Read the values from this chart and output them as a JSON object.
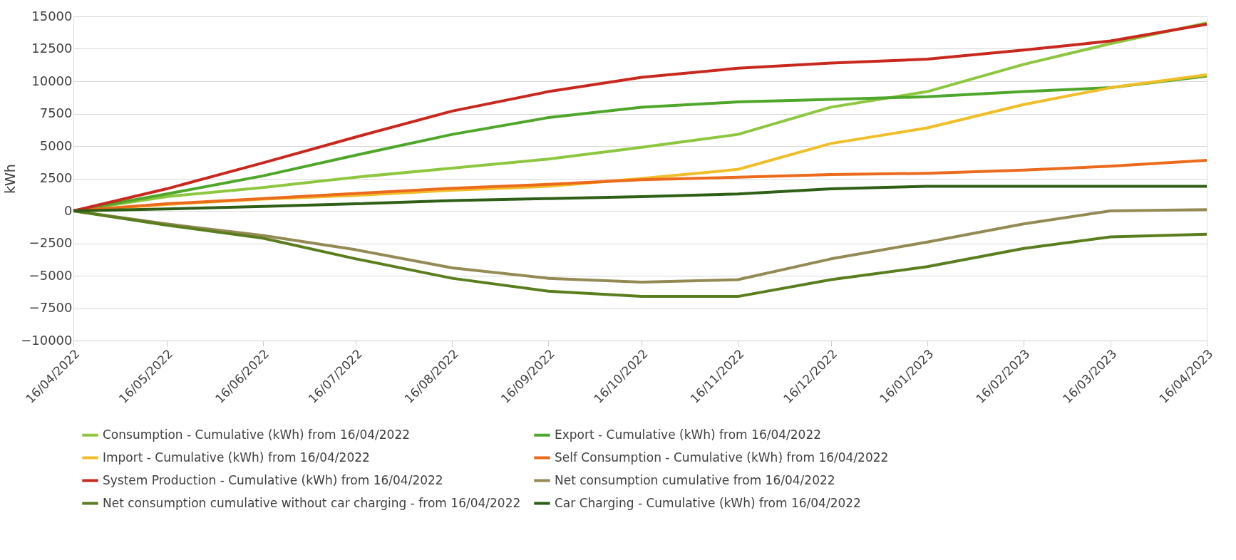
{
  "chart_data": {
    "type": "line",
    "ylabel": "kWh",
    "x": [
      "2022-04-16",
      "2022-05-16",
      "2022-06-16",
      "2022-07-16",
      "2022-08-16",
      "2022-09-16",
      "2022-10-16",
      "2022-11-16",
      "2022-12-16",
      "2023-01-16",
      "2023-02-16",
      "2023-03-16",
      "2023-04-16"
    ],
    "series": [
      {
        "name": "Consumption - Cumulative (kWh) from 16/04/2022",
        "color": "#8dc63f",
        "values": [
          0,
          1100,
          1800,
          2600,
          3300,
          4000,
          4900,
          5900,
          8000,
          9200,
          11300,
          12900,
          14500
        ]
      },
      {
        "name": "Export - Cumulative (kWh) from 16/04/2022",
        "color": "#4ea72a",
        "values": [
          0,
          1300,
          2700,
          4300,
          5900,
          7200,
          8000,
          8400,
          8600,
          8800,
          9200,
          9500,
          10400
        ]
      },
      {
        "name": "Import - Cumulative (kWh) from 16/04/2022",
        "color": "#f0be28",
        "values": [
          0,
          500,
          900,
          1200,
          1600,
          1900,
          2500,
          3200,
          5200,
          6400,
          8200,
          9500,
          10500
        ]
      },
      {
        "name": "Self Consumption - Cumulative (kWh) from 16/04/2022",
        "color": "#ec6a1c",
        "values": [
          0,
          550,
          950,
          1350,
          1750,
          2050,
          2400,
          2600,
          2800,
          2900,
          3150,
          3450,
          3900
        ]
      },
      {
        "name": "System Production - Cumulative (kWh) from 16/04/2022",
        "color": "#c8281e",
        "values": [
          0,
          1700,
          3700,
          5700,
          7700,
          9200,
          10300,
          11000,
          11400,
          11700,
          12400,
          13100,
          14400
        ]
      },
      {
        "name": "Net consumption cumulative from 16/04/2022",
        "color": "#948a54",
        "values": [
          0,
          -1000,
          -1900,
          -3000,
          -4400,
          -5200,
          -5500,
          -5300,
          -3700,
          -2400,
          -1000,
          0,
          100
        ]
      },
      {
        "name": "Net consumption cumulative without car charging - from 16/04/2022",
        "color": "#5a7d1e",
        "values": [
          0,
          -1100,
          -2100,
          -3700,
          -5200,
          -6200,
          -6600,
          -6600,
          -5300,
          -4300,
          -2900,
          -2000,
          -1800
        ]
      },
      {
        "name": "Car Charging - Cumulative (kWh) from 16/04/2022",
        "color": "#2f5f17",
        "values": [
          0,
          150,
          350,
          550,
          800,
          950,
          1100,
          1300,
          1700,
          1900,
          1900,
          1900,
          1900
        ]
      }
    ],
    "xlim": [
      "2022-04-16",
      "2023-04-16"
    ],
    "xticks": [
      {
        "value": "2022-04-16",
        "label": "16/04/2022"
      },
      {
        "value": "2022-05-16",
        "label": "16/05/2022"
      },
      {
        "value": "2022-06-16",
        "label": "16/06/2022"
      },
      {
        "value": "2022-07-16",
        "label": "16/07/2022"
      },
      {
        "value": "2022-08-16",
        "label": "16/08/2022"
      },
      {
        "value": "2022-09-16",
        "label": "16/09/2022"
      },
      {
        "value": "2022-10-16",
        "label": "16/10/2022"
      },
      {
        "value": "2022-11-16",
        "label": "16/11/2022"
      },
      {
        "value": "2022-12-16",
        "label": "16/12/2022"
      },
      {
        "value": "2023-01-16",
        "label": "16/01/2023"
      },
      {
        "value": "2023-02-16",
        "label": "16/02/2023"
      },
      {
        "value": "2023-03-16",
        "label": "16/03/2023"
      },
      {
        "value": "2023-04-16",
        "label": "16/04/2023"
      }
    ],
    "ylim": [
      -10000,
      15000
    ],
    "yticks": [
      -10000,
      -7500,
      -5000,
      -2500,
      0,
      2500,
      5000,
      7500,
      10000,
      12500,
      15000
    ],
    "grid": "y",
    "legend": "bottom",
    "line_style": "solid",
    "marker": "none"
  }
}
